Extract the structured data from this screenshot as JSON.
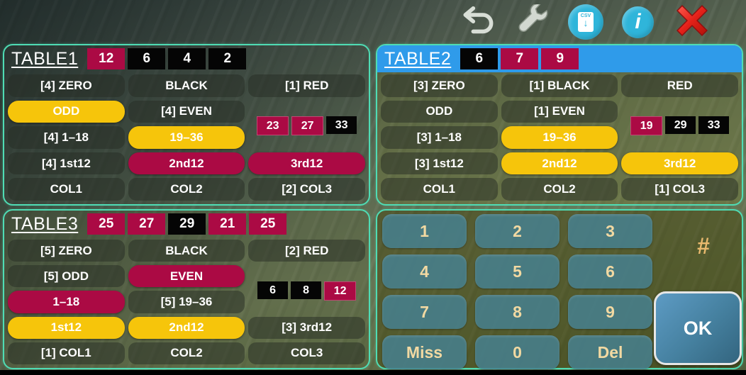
{
  "topbar": {
    "icons": [
      {
        "name": "undo-icon"
      },
      {
        "name": "wrench-icon"
      },
      {
        "name": "csv-export-icon",
        "label": "CSV"
      },
      {
        "name": "info-icon",
        "label": "i"
      },
      {
        "name": "close-icon"
      }
    ]
  },
  "colors": {
    "red": "#ab0a44",
    "black": "#050505",
    "yellow": "#f6c50b",
    "blue_header": "#2f9bea",
    "panel_border": "#4fdcb4",
    "keypad_key": "#46808f",
    "keypad_text": "#f2d9a2",
    "ok_blue": "#45809f",
    "close_red": "#e62e24"
  },
  "tables": [
    {
      "title": "TABLE1",
      "header_highlight": false,
      "history": [
        {
          "n": "12",
          "c": "red"
        },
        {
          "n": "6",
          "c": "black"
        },
        {
          "n": "4",
          "c": "black"
        },
        {
          "n": "2",
          "c": "black"
        }
      ],
      "rows": [
        [
          {
            "label": "[4] ZERO",
            "style": "gray"
          },
          {
            "label": "BLACK",
            "style": "gray"
          },
          {
            "label": "[1] RED",
            "style": "gray"
          }
        ],
        [
          {
            "label": "ODD",
            "style": "yellow"
          },
          {
            "label": "[4] EVEN",
            "style": "gray"
          },
          {
            "style": "empty"
          }
        ],
        [
          {
            "label": "[4] 1–18",
            "style": "gray"
          },
          {
            "label": "19–36",
            "style": "yellow"
          },
          {
            "style": "empty"
          }
        ],
        [
          {
            "label": "[4] 1st12",
            "style": "gray"
          },
          {
            "label": "2nd12",
            "style": "crimson"
          },
          {
            "label": "3rd12",
            "style": "crimson"
          }
        ],
        [
          {
            "label": "COL1",
            "style": "gray"
          },
          {
            "label": "COL2",
            "style": "gray"
          },
          {
            "label": "[2] COL3",
            "style": "gray"
          }
        ]
      ],
      "chips": [
        {
          "n": "23",
          "c": "red"
        },
        {
          "n": "27",
          "c": "red"
        },
        {
          "n": "33",
          "c": "black"
        }
      ]
    },
    {
      "title": "TABLE2",
      "header_highlight": true,
      "history": [
        {
          "n": "6",
          "c": "black"
        },
        {
          "n": "7",
          "c": "red"
        },
        {
          "n": "9",
          "c": "red"
        }
      ],
      "rows": [
        [
          {
            "label": "[3] ZERO",
            "style": "gray"
          },
          {
            "label": "[1] BLACK",
            "style": "gray"
          },
          {
            "label": "RED",
            "style": "gray"
          }
        ],
        [
          {
            "label": "ODD",
            "style": "gray"
          },
          {
            "label": "[1] EVEN",
            "style": "gray"
          },
          {
            "style": "empty"
          }
        ],
        [
          {
            "label": "[3] 1–18",
            "style": "gray"
          },
          {
            "label": "19–36",
            "style": "yellow"
          },
          {
            "style": "empty"
          }
        ],
        [
          {
            "label": "[3] 1st12",
            "style": "gray"
          },
          {
            "label": "2nd12",
            "style": "yellow"
          },
          {
            "label": "3rd12",
            "style": "yellow"
          }
        ],
        [
          {
            "label": "COL1",
            "style": "gray"
          },
          {
            "label": "COL2",
            "style": "gray"
          },
          {
            "label": "[1] COL3",
            "style": "gray"
          }
        ]
      ],
      "chips": [
        {
          "n": "19",
          "c": "red"
        },
        {
          "n": "29",
          "c": "black"
        },
        {
          "n": "33",
          "c": "black"
        }
      ]
    },
    {
      "title": "TABLE3",
      "header_highlight": false,
      "history": [
        {
          "n": "25",
          "c": "red"
        },
        {
          "n": "27",
          "c": "red"
        },
        {
          "n": "29",
          "c": "black"
        },
        {
          "n": "21",
          "c": "red"
        },
        {
          "n": "25",
          "c": "red"
        }
      ],
      "rows": [
        [
          {
            "label": "[5] ZERO",
            "style": "gray"
          },
          {
            "label": "BLACK",
            "style": "gray"
          },
          {
            "label": "[2] RED",
            "style": "gray"
          }
        ],
        [
          {
            "label": "[5] ODD",
            "style": "gray"
          },
          {
            "label": "EVEN",
            "style": "crimson"
          },
          {
            "style": "empty"
          }
        ],
        [
          {
            "label": "1–18",
            "style": "crimson"
          },
          {
            "label": "[5] 19–36",
            "style": "gray"
          },
          {
            "style": "empty"
          }
        ],
        [
          {
            "label": "1st12",
            "style": "yellow"
          },
          {
            "label": "2nd12",
            "style": "yellow"
          },
          {
            "label": "[3] 3rd12",
            "style": "gray"
          }
        ],
        [
          {
            "label": "[1] COL1",
            "style": "gray"
          },
          {
            "label": "COL2",
            "style": "gray"
          },
          {
            "label": "COL3",
            "style": "gray"
          }
        ]
      ],
      "chips": [
        {
          "n": "6",
          "c": "black"
        },
        {
          "n": "8",
          "c": "black"
        },
        {
          "n": "12",
          "c": "red"
        }
      ]
    }
  ],
  "keypad": {
    "keys": [
      [
        "1",
        "2",
        "3"
      ],
      [
        "4",
        "5",
        "6"
      ],
      [
        "7",
        "8",
        "9"
      ],
      [
        "Miss",
        "0",
        "Del"
      ]
    ],
    "hash_label": "#",
    "ok_label": "OK"
  }
}
